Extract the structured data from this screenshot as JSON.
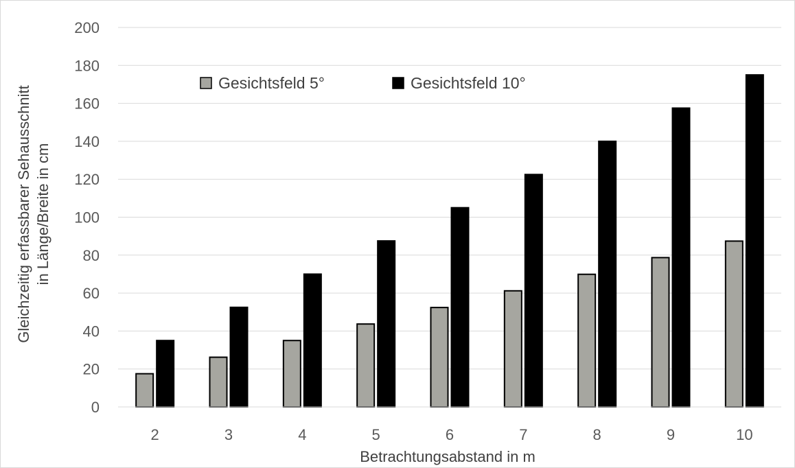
{
  "chart_data": {
    "type": "bar",
    "categories": [
      "2",
      "3",
      "4",
      "5",
      "6",
      "7",
      "8",
      "9",
      "10"
    ],
    "series": [
      {
        "name": "Gesichtsfeld 5°",
        "color": "#a6a6a0",
        "values": [
          17.5,
          26.2,
          35.0,
          43.7,
          52.4,
          61.2,
          69.9,
          78.7,
          87.4
        ]
      },
      {
        "name": "Gesichtsfeld 10°",
        "color": "#000000",
        "values": [
          35.0,
          52.5,
          70.0,
          87.5,
          105.0,
          122.5,
          140.0,
          157.5,
          175.0
        ]
      }
    ],
    "title": "",
    "xlabel": "Betrachtungsabstand in m",
    "ylabel_lines": [
      "Gleichzeitig erfassbarer Sehausschnitt",
      "in Länge/Breite in cm"
    ],
    "ylim": [
      0,
      200
    ],
    "yticks": [
      "0",
      "20",
      "40",
      "60",
      "80",
      "100",
      "120",
      "140",
      "160",
      "180",
      "200"
    ],
    "grid": true,
    "legend_position": "top-left"
  }
}
